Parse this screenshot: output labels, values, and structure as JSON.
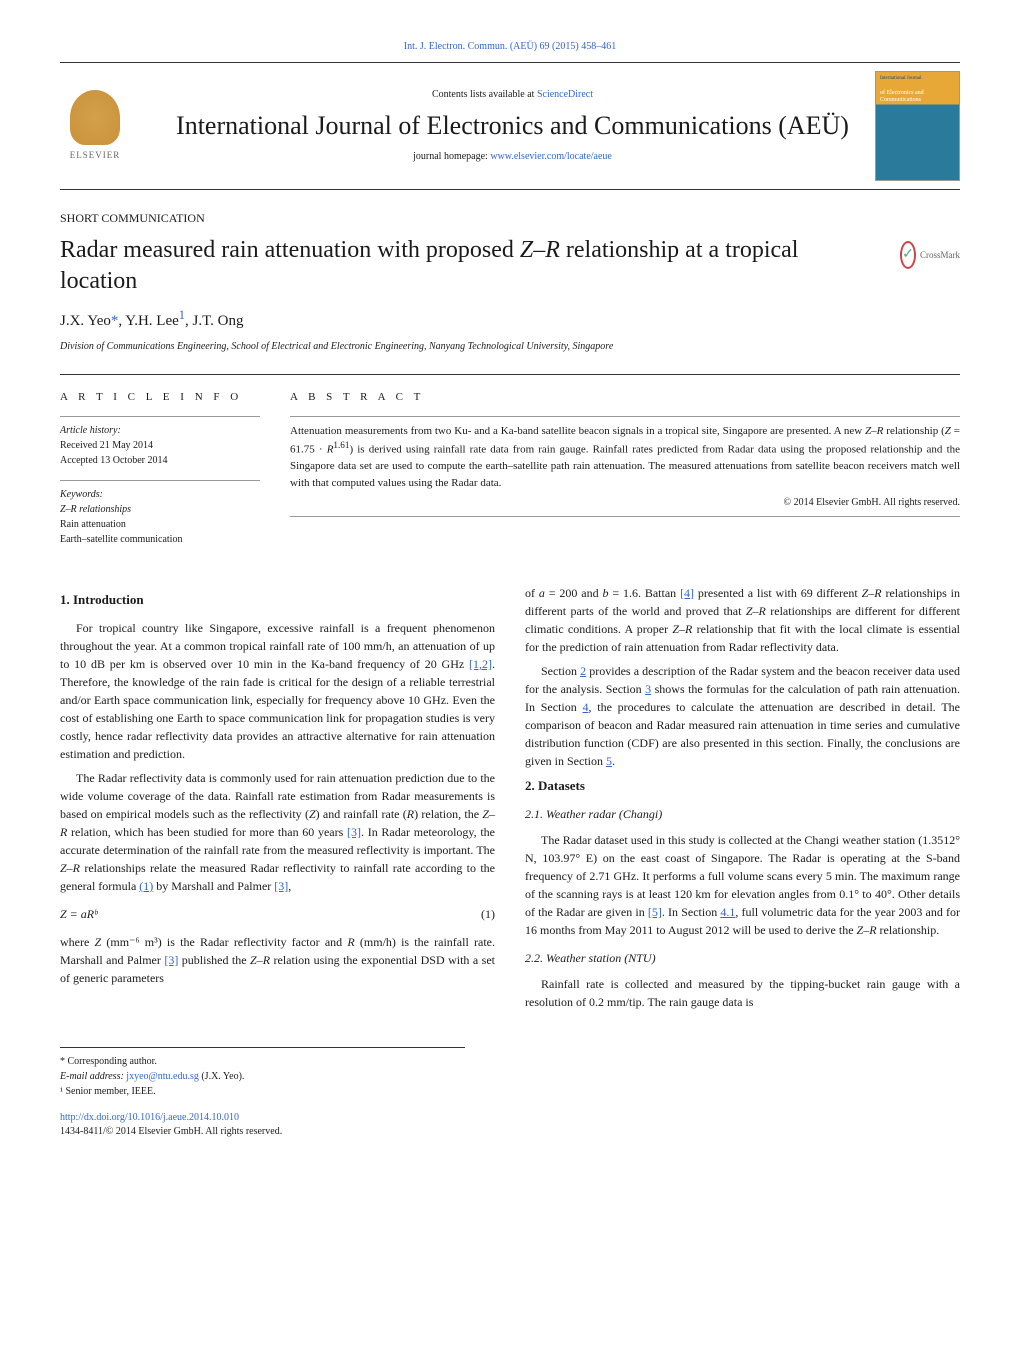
{
  "header": {
    "citation": "Int. J. Electron. Commun. (AEÜ) 69 (2015) 458–461",
    "contents_available_prefix": "Contents lists available at ",
    "contents_available_link": "ScienceDirect",
    "journal_title": "International Journal of Electronics and Communications (AEÜ)",
    "homepage_prefix": "journal homepage: ",
    "homepage_link": "www.elsevier.com/locate/aeue",
    "elsevier_label": "ELSEVIER",
    "cover_top": "International Journal",
    "cover_title": "of Electronics and Communications"
  },
  "article": {
    "section_label": "SHORT COMMUNICATION",
    "title_pre": "Radar measured rain attenuation with proposed ",
    "title_var": "Z–R",
    "title_post": " relationship at a tropical location",
    "crossmark": "CrossMark",
    "authors_html": "J.X. Yeo",
    "author1_mark": "*",
    "author2": ", Y.H. Lee",
    "author2_mark": "1",
    "author3": ", J.T. Ong",
    "affiliation": "Division of Communications Engineering, School of Electrical and Electronic Engineering, Nanyang Technological University, Singapore"
  },
  "info": {
    "heading": "a r t i c l e   i n f o",
    "history_label": "Article history:",
    "received": "Received 21 May 2014",
    "accepted": "Accepted 13 October 2014",
    "keywords_label": "Keywords:",
    "kw1": "Z–R relationships",
    "kw2": "Rain attenuation",
    "kw3": "Earth–satellite communication"
  },
  "abstract": {
    "heading": "a b s t r a c t",
    "text_parts": [
      "Attenuation measurements from two Ku- and a Ka-band satellite beacon signals in a tropical site, Singapore are presented. A new ",
      "Z–R",
      " relationship (",
      "Z",
      " = 61.75 · ",
      "R",
      "1.61",
      ") is derived using rainfall rate data from rain gauge. Rainfall rates predicted from Radar data using the proposed relationship and the Singapore data set are used to compute the earth–satellite path rain attenuation. The measured attenuations from satellite beacon receivers match well with that computed values using the Radar data."
    ],
    "copyright": "© 2014 Elsevier GmbH. All rights reserved."
  },
  "body": {
    "s1_heading": "1.  Introduction",
    "s1_p1_a": "For tropical country like Singapore, excessive rainfall is a frequent phenomenon throughout the year. At a common tropical rainfall rate of 100 mm/h, an attenuation of up to 10 dB per km is observed over 10 min in the Ka-band frequency of 20 GHz ",
    "s1_p1_ref1": "[1,2]",
    "s1_p1_b": ". Therefore, the knowledge of the rain fade is critical for the design of a reliable terrestrial and/or Earth space communication link, especially for frequency above 10 GHz. Even the cost of establishing one Earth to space communication link for propagation studies is very costly, hence radar reflectivity data provides an attractive alternative for rain attenuation estimation and prediction.",
    "s1_p2_a": "The Radar reflectivity data is commonly used for rain attenuation prediction due to the wide volume coverage of the data. Rainfall rate estimation from Radar measurements is based on empirical models such as the reflectivity (",
    "s1_p2_z": "Z",
    "s1_p2_b": ") and rainfall rate (",
    "s1_p2_r": "R",
    "s1_p2_c": ") relation, the ",
    "s1_p2_zr": "Z–R",
    "s1_p2_d": " relation, which has been studied for more than 60 years ",
    "s1_p2_ref3": "[3]",
    "s1_p2_e": ". In Radar meteorology, the accurate determination of the rainfall rate from the measured reflectivity is important. The ",
    "s1_p2_zr2": "Z–R",
    "s1_p2_f": " relationships relate the measured Radar reflectivity to rainfall rate according to the general formula ",
    "s1_p2_ref_eq": "(1)",
    "s1_p2_g": " by Marshall and Palmer ",
    "s1_p2_ref3b": "[3]",
    "s1_p2_h": ",",
    "eq1": "Z = aRᵇ",
    "eq1_num": "(1)",
    "s1_p3_a": "where ",
    "s1_p3_z": "Z",
    "s1_p3_b": " (mm⁻⁶ m³) is the Radar reflectivity factor and ",
    "s1_p3_r": "R",
    "s1_p3_c": " (mm/h) is the rainfall rate. Marshall and Palmer ",
    "s1_p3_ref3": "[3]",
    "s1_p3_d": " published the ",
    "s1_p3_zr": "Z–R",
    "s1_p3_e": " relation using the exponential DSD with a set of generic parameters",
    "col2_p1_a": "of ",
    "col2_p1_a1": "a",
    "col2_p1_b": " = 200 and ",
    "col2_p1_b1": "b",
    "col2_p1_c": " = 1.6. Battan ",
    "col2_p1_ref4": "[4]",
    "col2_p1_d": " presented a list with 69 different ",
    "col2_p1_zr": "Z–R",
    "col2_p1_e": " relationships in different parts of the world and proved that ",
    "col2_p1_zr2": "Z–R",
    "col2_p1_f": " relationships are different for different climatic conditions. A proper ",
    "col2_p1_zr3": "Z–R",
    "col2_p1_g": " relationship that fit with the local climate is essential for the prediction of rain attenuation from Radar reflectivity data.",
    "col2_p2_a": "Section ",
    "col2_p2_ref2": "2",
    "col2_p2_b": " provides a description of the Radar system and the beacon receiver data used for the analysis. Section ",
    "col2_p2_ref3": "3",
    "col2_p2_c": " shows the formulas for the calculation of path rain attenuation. In Section ",
    "col2_p2_ref4": "4",
    "col2_p2_d": ", the procedures to calculate the attenuation are described in detail. The comparison of beacon and Radar measured rain attenuation in time series and cumulative distribution function (CDF) are also presented in this section. Finally, the conclusions are given in Section ",
    "col2_p2_ref5": "5",
    "col2_p2_e": ".",
    "s2_heading": "2.  Datasets",
    "s21_heading": "2.1.  Weather radar (Changi)",
    "s21_p1_a": "The Radar dataset used in this study is collected at the Changi weather station (1.3512° N, 103.97° E) on the east coast of Singapore. The Radar is operating at the S-band frequency of 2.71 GHz. It performs a full volume scans every 5 min. The maximum range of the scanning rays is at least 120 km for elevation angles from 0.1° to 40°. Other details of the Radar are given in ",
    "s21_p1_ref5": "[5]",
    "s21_p1_b": ". In Section ",
    "s21_p1_ref41": "4.1",
    "s21_p1_c": ", full volumetric data for the year 2003 and for 16 months from May 2011 to August 2012 will be used to derive the ",
    "s21_p1_zr": "Z–R",
    "s21_p1_d": " relationship.",
    "s22_heading": "2.2.  Weather station (NTU)",
    "s22_p1": "Rainfall rate is collected and measured by the tipping-bucket rain gauge with a resolution of 0.2 mm/tip. The rain gauge data is"
  },
  "footnotes": {
    "corresponding": "* Corresponding author.",
    "email_label": "E-mail address: ",
    "email": "jxyeo@ntu.edu.sg",
    "email_author": " (J.X. Yeo).",
    "note1": "¹ Senior member, IEEE."
  },
  "footer": {
    "doi": "http://dx.doi.org/10.1016/j.aeue.2014.10.010",
    "issn": "1434-8411/© 2014 Elsevier GmbH. All rights reserved."
  },
  "colors": {
    "link": "#3366cc",
    "text": "#1a1a1a"
  }
}
